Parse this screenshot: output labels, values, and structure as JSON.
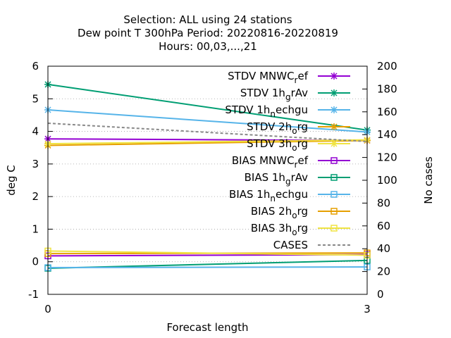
{
  "chart_data": {
    "type": "line",
    "title_lines": [
      "Selection: ALL using    24 stations",
      "Dew point T 300hPa   Period: 20220816-20220819",
      "Hours:  00,03,...,21"
    ],
    "xlabel": "Forecast length",
    "ylabel": "deg C",
    "y2label": "No cases",
    "x": [
      0,
      3
    ],
    "xticks": [
      "0",
      "3"
    ],
    "xlim": [
      0,
      3
    ],
    "ylim": [
      -1,
      6
    ],
    "yticks": [
      -1,
      0,
      1,
      2,
      3,
      4,
      5,
      6
    ],
    "y2lim": [
      0,
      200
    ],
    "y2ticks": [
      0,
      20,
      40,
      60,
      80,
      100,
      120,
      140,
      160,
      180,
      200
    ],
    "grid": true,
    "legend_position": "top-right",
    "series": [
      {
        "name": "STDV MNWC_ref",
        "legend": {
          "base": "STDV MNWC",
          "sub": "r",
          "rest": "ef"
        },
        "axis": "y",
        "color": "#9400d3",
        "marker": "x",
        "values": [
          3.77,
          3.72
        ]
      },
      {
        "name": "STDV 1h_grAv",
        "legend": {
          "base": "STDV 1h",
          "sub": "g",
          "rest": "rAv"
        },
        "axis": "y",
        "color": "#009e73",
        "marker": "x",
        "values": [
          5.44,
          4.04
        ]
      },
      {
        "name": "STDV 1h_nechgu",
        "legend": {
          "base": "STDV 1h",
          "sub": "n",
          "rest": "echgu"
        },
        "axis": "y",
        "color": "#56b4e9",
        "marker": "x",
        "values": [
          4.66,
          3.98
        ]
      },
      {
        "name": "STDV 2h_org",
        "legend": {
          "base": "STDV 2h",
          "sub": "o",
          "rest": "rg"
        },
        "axis": "y",
        "color": "#e69f00",
        "marker": "x",
        "values": [
          3.57,
          3.72
        ]
      },
      {
        "name": "STDV 3h_org",
        "legend": {
          "base": "STDV 3h",
          "sub": "o",
          "rest": "rg"
        },
        "axis": "y",
        "color": "#f0e442",
        "marker": "x",
        "values": [
          3.62,
          3.74
        ]
      },
      {
        "name": "BIAS MNWC_ref",
        "legend": {
          "base": "BIAS MNWC",
          "sub": "r",
          "rest": "ef"
        },
        "axis": "y",
        "color": "#9400d3",
        "marker": "square",
        "values": [
          0.18,
          0.22
        ]
      },
      {
        "name": "BIAS 1h_grAv",
        "legend": {
          "base": "BIAS 1h",
          "sub": "g",
          "rest": "rAv"
        },
        "axis": "y",
        "color": "#009e73",
        "marker": "square",
        "values": [
          -0.2,
          0.04
        ]
      },
      {
        "name": "BIAS 1h_nechgu",
        "legend": {
          "base": "BIAS 1h",
          "sub": "n",
          "rest": "echgu"
        },
        "axis": "y",
        "color": "#56b4e9",
        "marker": "square",
        "values": [
          -0.18,
          -0.16
        ]
      },
      {
        "name": "BIAS 2h_org",
        "legend": {
          "base": "BIAS 2h",
          "sub": "o",
          "rest": "rg"
        },
        "axis": "y",
        "color": "#e69f00",
        "marker": "square",
        "values": [
          0.25,
          0.27
        ]
      },
      {
        "name": "BIAS 3h_org",
        "legend": {
          "base": "BIAS 3h",
          "sub": "o",
          "rest": "rg"
        },
        "axis": "y",
        "color": "#f0e442",
        "marker": "square",
        "values": [
          0.33,
          0.2
        ]
      },
      {
        "name": "CASES",
        "legend": {
          "base": "CASES",
          "sub": "",
          "rest": ""
        },
        "axis": "y2",
        "color": "#888888",
        "marker": "none",
        "dashed": true,
        "values": [
          150,
          134
        ]
      }
    ]
  }
}
